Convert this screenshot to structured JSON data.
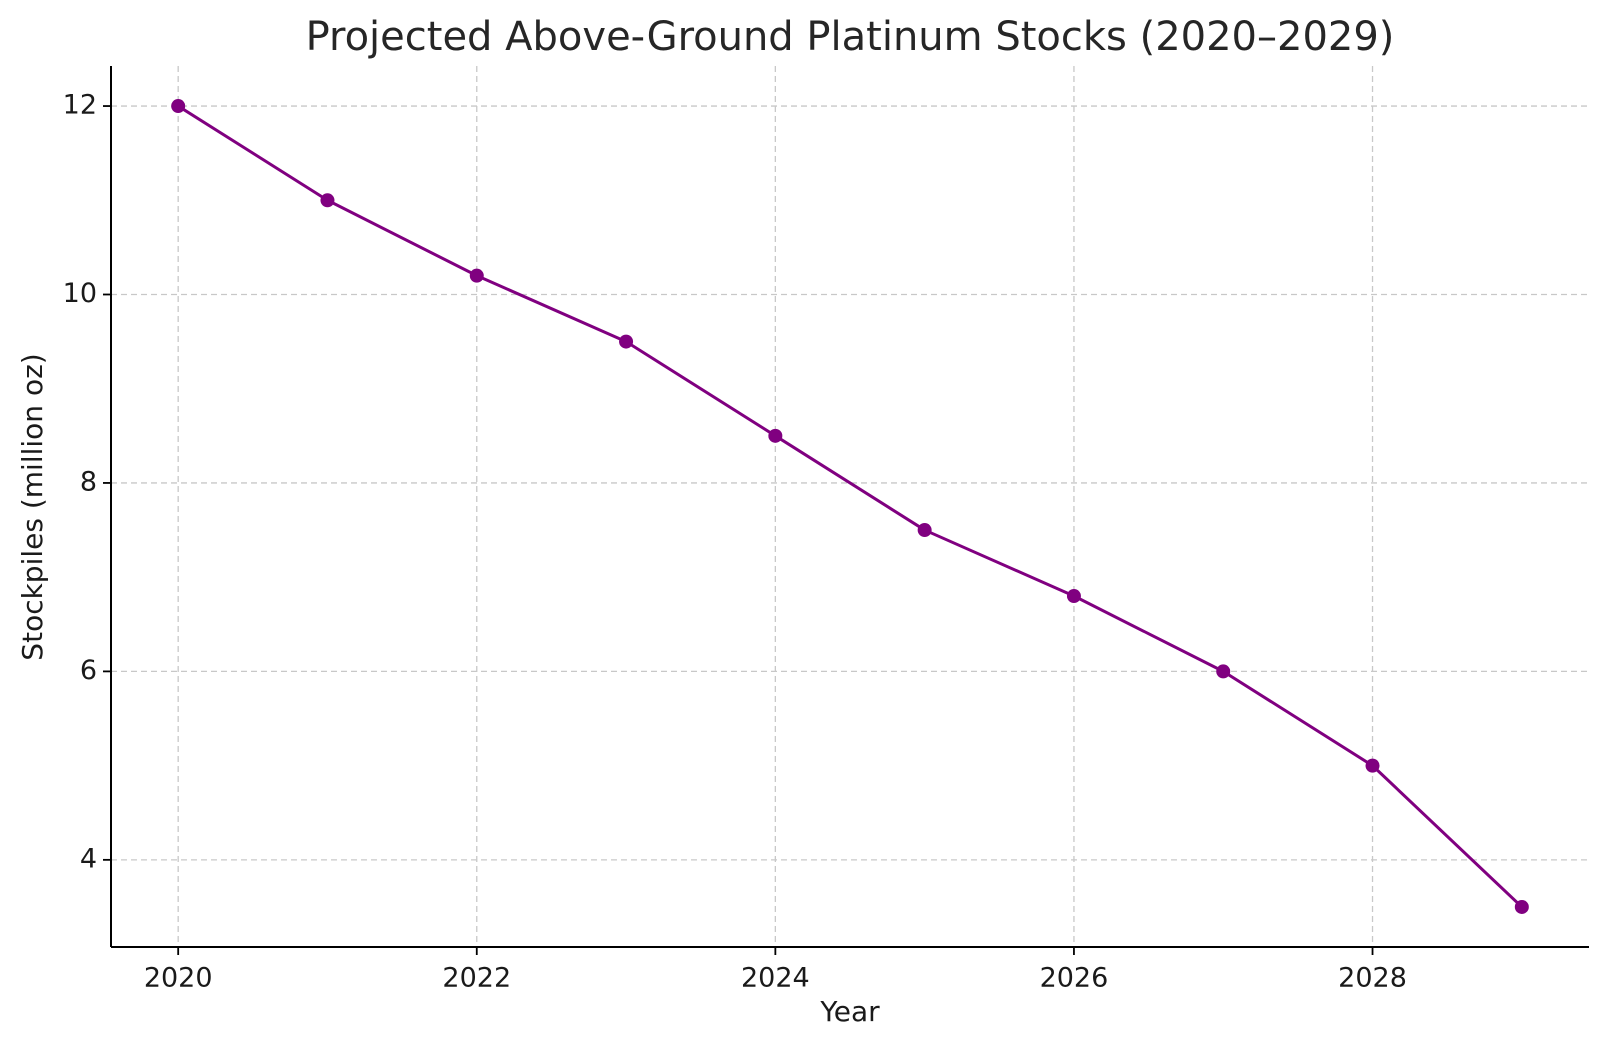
{
  "chart_data": {
    "type": "line",
    "title": "Projected Above-Ground Platinum Stocks (2020–2029)",
    "xlabel": "Year",
    "ylabel": "Stockpiles (million oz)",
    "x": [
      2020,
      2021,
      2022,
      2023,
      2024,
      2025,
      2026,
      2027,
      2028,
      2029
    ],
    "series": [
      {
        "values": [
          12.0,
          11.0,
          10.2,
          9.5,
          8.5,
          7.5,
          6.8,
          6.0,
          5.0,
          3.5
        ],
        "color": "#800080",
        "marker": "circle"
      }
    ],
    "xlim": [
      2019.55,
      2029.45
    ],
    "ylim": [
      3.075,
      12.425
    ],
    "xticks": [
      "2020",
      "2022",
      "2024",
      "2026",
      "2028"
    ],
    "yticks": [
      "4",
      "6",
      "8",
      "10",
      "12"
    ],
    "grid": true,
    "legend": "none"
  }
}
